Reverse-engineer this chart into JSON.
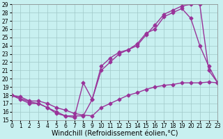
{
  "xlabel": "Windchill (Refroidissement éolien,°C)",
  "background_color": "#c8f0f0",
  "grid_color": "#a0c8c8",
  "line_color": "#993399",
  "xlim": [
    0,
    23
  ],
  "ylim": [
    15,
    29
  ],
  "xticks": [
    0,
    1,
    2,
    3,
    4,
    5,
    6,
    7,
    8,
    9,
    10,
    11,
    12,
    13,
    14,
    15,
    16,
    17,
    18,
    19,
    20,
    21,
    22,
    23
  ],
  "yticks": [
    15,
    16,
    17,
    18,
    19,
    20,
    21,
    22,
    23,
    24,
    25,
    26,
    27,
    28,
    29
  ],
  "line1_x": [
    0,
    1,
    2,
    3,
    4,
    5,
    6,
    7,
    8,
    9,
    10,
    11,
    12,
    13,
    14,
    15,
    16,
    17,
    18,
    19,
    20,
    21,
    22,
    23
  ],
  "line1_y": [
    18.0,
    17.8,
    17.3,
    17.3,
    17.0,
    16.5,
    16.2,
    15.8,
    15.6,
    15.5,
    16.5,
    17.0,
    17.5,
    18.0,
    18.3,
    18.7,
    19.0,
    19.2,
    19.3,
    19.5,
    19.5,
    19.5,
    19.6,
    19.5
  ],
  "line2_x": [
    0,
    1,
    2,
    3,
    4,
    5,
    6,
    7,
    8,
    9,
    10,
    11,
    12,
    13,
    14,
    15,
    16,
    17,
    18,
    19,
    20,
    21,
    22,
    23
  ],
  "line2_y": [
    18.0,
    17.5,
    17.0,
    17.0,
    16.5,
    15.8,
    15.5,
    15.3,
    19.5,
    17.5,
    21.5,
    22.5,
    23.2,
    23.5,
    24.2,
    25.5,
    26.0,
    27.5,
    28.0,
    28.5,
    27.3,
    24.0,
    21.5,
    19.5
  ],
  "line3_x": [
    0,
    2,
    3,
    4,
    5,
    6,
    7,
    8,
    9,
    10,
    11,
    12,
    13,
    14,
    15,
    16,
    17,
    18,
    19,
    20,
    21,
    22,
    23
  ],
  "line3_y": [
    18.0,
    17.2,
    17.0,
    16.5,
    16.0,
    15.5,
    15.5,
    15.5,
    17.5,
    21.0,
    22.0,
    23.0,
    23.5,
    24.0,
    25.3,
    26.5,
    27.8,
    28.3,
    28.8,
    29.0,
    29.0,
    21.0,
    19.5
  ],
  "marker": "D",
  "markersize": 2.5,
  "linewidth": 1.0,
  "tick_fontsize": 5.5,
  "xlabel_fontsize": 7.0
}
